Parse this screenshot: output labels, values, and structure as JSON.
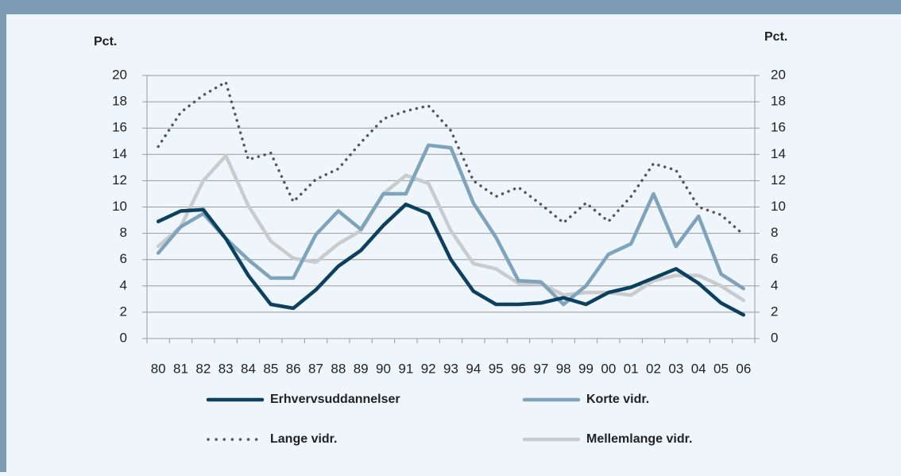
{
  "chart_data": {
    "type": "line",
    "y_label": "Pct.",
    "y2_label": "Pct.",
    "categories": [
      "80",
      "81",
      "82",
      "83",
      "84",
      "85",
      "86",
      "87",
      "88",
      "89",
      "90",
      "91",
      "92",
      "93",
      "94",
      "95",
      "96",
      "97",
      "98",
      "99",
      "00",
      "01",
      "02",
      "03",
      "04",
      "05",
      "06"
    ],
    "series": [
      {
        "name": "Lange vidr.",
        "color": "#555555",
        "dotted": true,
        "values": [
          14.6,
          17.2,
          18.5,
          19.5,
          13.6,
          14.1,
          10.4,
          12.1,
          12.9,
          14.9,
          16.7,
          17.3,
          17.7,
          15.8,
          12.0,
          10.8,
          11.5,
          10.2,
          8.8,
          10.3,
          8.9,
          10.8,
          13.3,
          12.8,
          10.0,
          9.4,
          7.9
        ]
      },
      {
        "name": "Mellemlange vidr.",
        "color": "#c9cbcd",
        "values": [
          7.0,
          8.5,
          12.0,
          13.9,
          10.1,
          7.4,
          6.1,
          5.8,
          7.2,
          8.2,
          11.0,
          12.4,
          11.8,
          8.2,
          5.7,
          5.3,
          4.2,
          4.2,
          3.3,
          3.5,
          3.5,
          3.3,
          4.4,
          4.8,
          4.8,
          4.0,
          2.9
        ]
      },
      {
        "name": "Korte vidr.",
        "color": "#7fa3ba",
        "values": [
          6.5,
          8.5,
          9.5,
          7.6,
          6.0,
          4.6,
          4.6,
          7.9,
          9.7,
          8.3,
          11.0,
          11.0,
          14.7,
          14.5,
          10.3,
          7.7,
          4.4,
          4.3,
          2.6,
          4.0,
          6.4,
          7.2,
          11.0,
          7.0,
          9.3,
          4.9,
          3.8
        ]
      },
      {
        "name": "Erhvervsuddannelser",
        "color": "#0d3f5f",
        "values": [
          8.9,
          9.7,
          9.8,
          7.6,
          4.8,
          2.6,
          2.3,
          3.7,
          5.5,
          6.7,
          8.6,
          10.2,
          9.5,
          6.0,
          3.6,
          2.6,
          2.6,
          2.7,
          3.1,
          2.6,
          3.5,
          3.9,
          4.6,
          5.3,
          4.2,
          2.7,
          1.8
        ]
      }
    ],
    "legend_order": [
      3,
      2,
      0,
      1
    ],
    "ylim": [
      0,
      20
    ],
    "yticks": [
      0,
      2,
      4,
      6,
      8,
      10,
      12,
      14,
      16,
      18,
      20
    ],
    "y2lim": [
      0,
      20
    ],
    "y2ticks": [
      0,
      2,
      4,
      6,
      8,
      10,
      12,
      14,
      16,
      18,
      20
    ],
    "grid": true
  }
}
